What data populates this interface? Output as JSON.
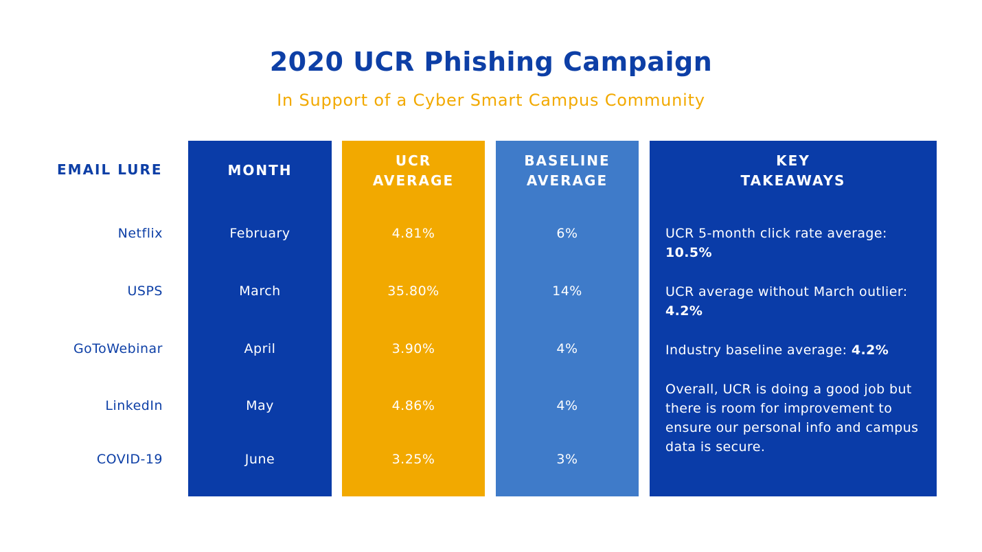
{
  "title": "2020 UCR Phishing Campaign",
  "subtitle": "In Support of a Cyber Smart Campus Community",
  "colors": {
    "title_blue": "#0d3fa6",
    "dark_blue": "#0a3ca8",
    "gold": "#f2a900",
    "light_blue": "#3f7bc9"
  },
  "headers": {
    "email_lure": "EMAIL LURE",
    "month": "MONTH",
    "ucr_line1": "UCR",
    "ucr_line2": "AVERAGE",
    "baseline_line1": "BASELINE",
    "baseline_line2": "AVERAGE",
    "key_line1": "KEY",
    "key_line2": "TAKEAWAYS"
  },
  "rows": [
    {
      "lure": "Netflix",
      "month": "February",
      "ucr": "4.81%",
      "baseline": "6%"
    },
    {
      "lure": "USPS",
      "month": "March",
      "ucr": "35.80%",
      "baseline": "14%"
    },
    {
      "lure": "GoToWebinar",
      "month": "April",
      "ucr": "3.90%",
      "baseline": "4%"
    },
    {
      "lure": "LinkedIn",
      "month": "May",
      "ucr": "4.86%",
      "baseline": "4%"
    },
    {
      "lure": "COVID-19",
      "month": "June",
      "ucr": "3.25%",
      "baseline": "3%"
    }
  ],
  "takeaways": [
    {
      "text": "UCR 5-month click rate average: ",
      "bold": "10.5%"
    },
    {
      "text": "UCR average without March outlier: ",
      "bold": "4.2%"
    },
    {
      "text": "Industry baseline average: ",
      "bold": "4.2%"
    },
    {
      "text": "Overall, UCR is doing a good job but there is room for improvement to ensure our personal info and campus data is secure.",
      "bold": ""
    }
  ]
}
